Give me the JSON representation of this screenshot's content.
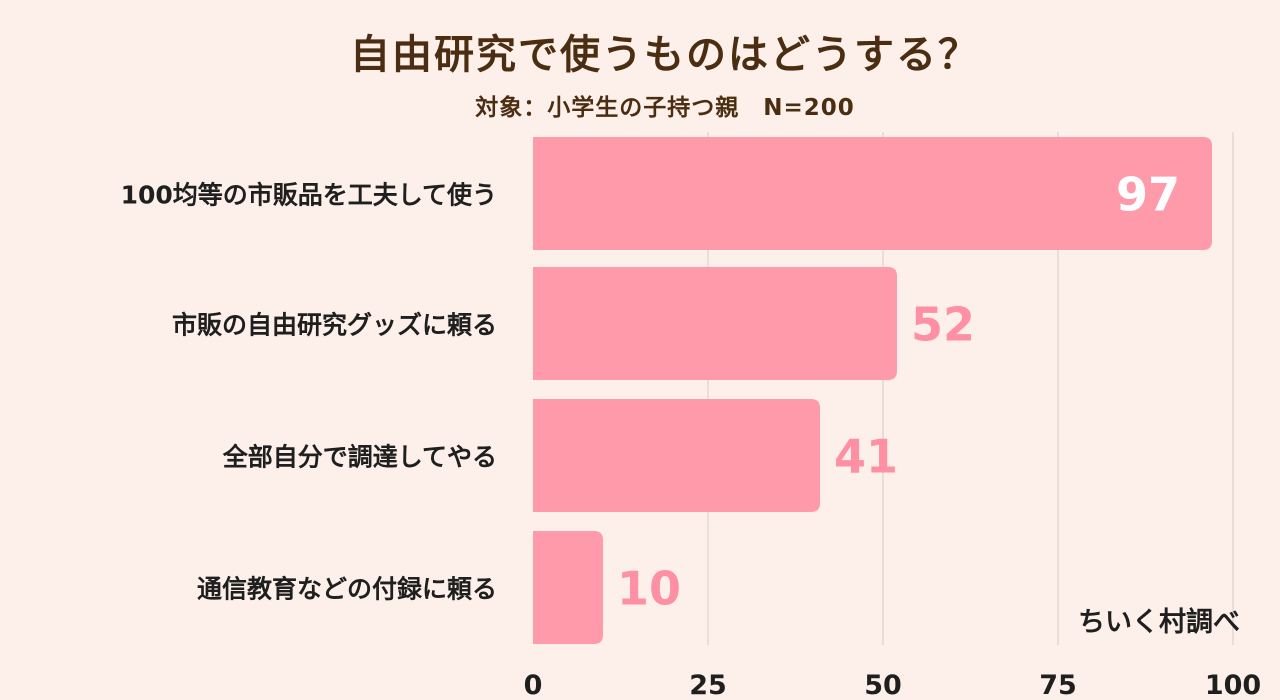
{
  "title": "自由研究で使うものはどうする？",
  "subtitle": "対象：小学生の子持つ親　N=200",
  "source": "ちいく村調べ",
  "colors": {
    "bar": "#ff9aaa",
    "label_outside": "#ff8fa3",
    "label_inside": "#ffffff",
    "grid": "#d6c9c4",
    "text": "#1f1f1f",
    "title": "#4b2e12"
  },
  "chart_data": {
    "type": "bar",
    "orientation": "horizontal",
    "categories": [
      "100均等の市販品を工夫して使う",
      "市販の自由研究グッズに頼る",
      "全部自分で調達してやる",
      "通信教育などの付録に頼る"
    ],
    "values": [
      97,
      52,
      41,
      10
    ],
    "xlim": [
      0,
      100
    ],
    "ticks": [
      "0",
      "25",
      "50",
      "75",
      "100"
    ],
    "grid": true
  }
}
